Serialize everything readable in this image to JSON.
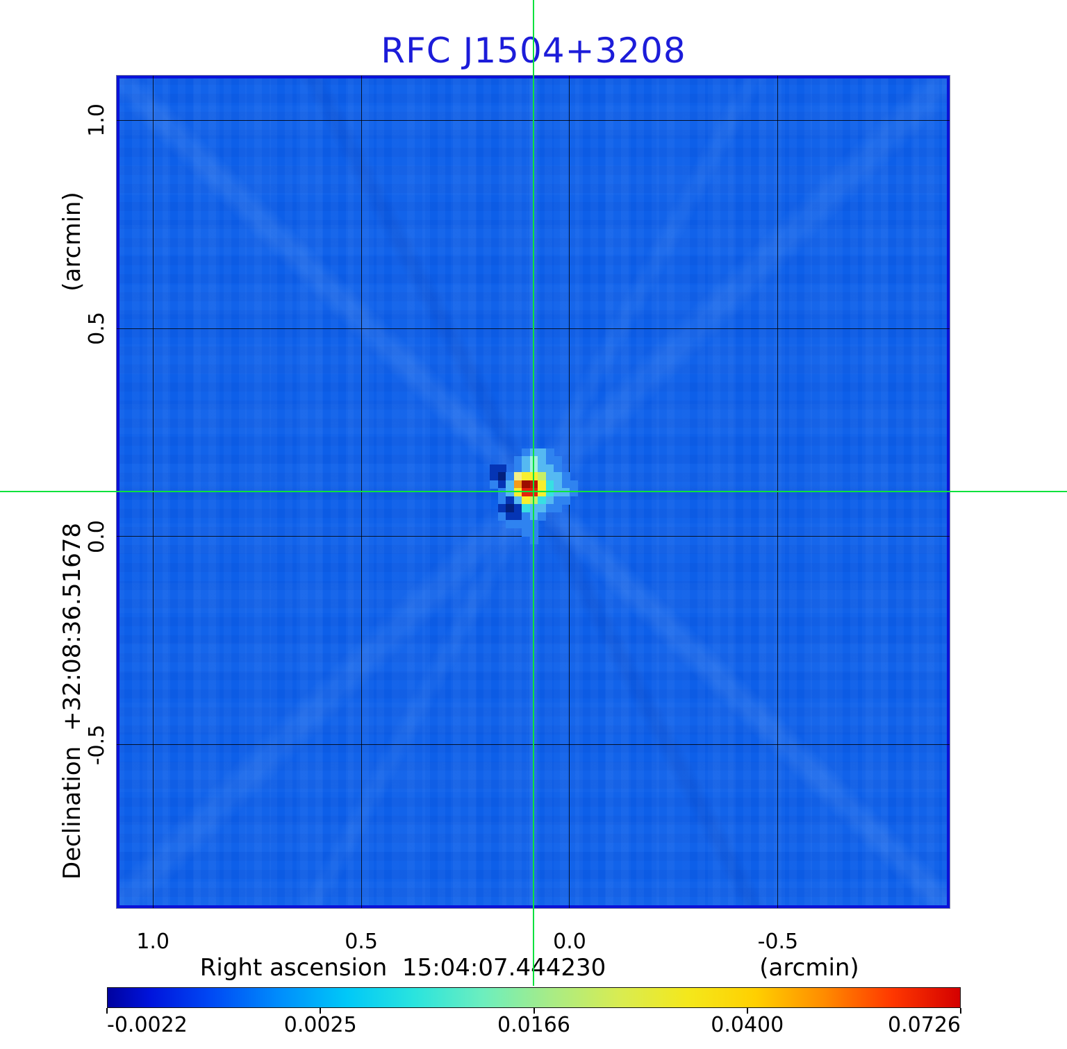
{
  "title": {
    "text": "RFC J1504+3208",
    "color": "#1c1cd9"
  },
  "y_axis": {
    "unit_label": "(arcmin)",
    "name_label": "Declination  +32:08:36.51678",
    "tick_labels": [
      "1.0",
      "0.5",
      "0.0",
      "-0.5"
    ]
  },
  "x_axis": {
    "unit_label": "(arcmin)",
    "name_label": "Right ascension  15:04:07.444230",
    "tick_labels": [
      "1.0",
      "0.5",
      "0.0",
      "-0.5"
    ]
  },
  "crosshair": {
    "color": "#0ce23c",
    "ra_arcmin": 0.087,
    "dec_arcmin": 0.108
  },
  "colorbar": {
    "labels": [
      "-0.0022",
      "0.0025",
      "0.0166",
      "0.0400",
      "0.0726"
    ],
    "fracs": [
      0,
      0.25,
      0.5,
      0.75,
      1
    ],
    "aligns": [
      "left",
      "center",
      "center",
      "center",
      "right"
    ]
  },
  "chart_data": {
    "type": "heatmap",
    "title": "RFC J1504+3208",
    "xlabel": "Right ascension  15:04:07.444230 (arcmin)",
    "ylabel": "Declination  +32:08:36.51678 (arcmin)",
    "x_range_arcmin": [
      1.087,
      -0.912
    ],
    "y_range_arcmin": [
      1.107,
      -0.892
    ],
    "x_ticks": [
      1.0,
      0.5,
      0.0,
      -0.5
    ],
    "y_ticks": [
      1.0,
      0.5,
      0.0,
      -0.5
    ],
    "grid": true,
    "value_min": -0.0022,
    "value_max": 0.0726,
    "colorbar_tick_values": [
      -0.0022,
      0.0025,
      0.0166,
      0.04,
      0.0726
    ],
    "colormap": "blue-cyan-yellow-red jet-like",
    "peak_position_arcmin": {
      "x": 0.087,
      "y": 0.108
    },
    "background_level_color": "#0d5fe9",
    "source_pixels": {
      "origin_x_arcmin": 0.2108,
      "origin_y_arcmin": 0.2125,
      "cell_arcmin": 0.01917,
      "palette": {
        "b": "#2f83f0",
        "c": "#55b9f2",
        "C": "#38dfe3",
        "p": "#a5f2dc",
        "g": "#c6ee67",
        "Y": "#f3ef86",
        "y": "#f7ef2e",
        "o": "#f59c1a",
        "r": "#e3230c",
        "E": "#c01505",
        "R": "#9c0d00",
        "n": "#0535b5",
        "N": "#03207d"
      },
      "rows": [
        ".....bccb....",
        "....bcpcbb...",
        ".nn.bcpccb...",
        ".nNbYyygccb..",
        ".bncoREyCcbb.",
        "..bcyrryCccb.",
        "..bncygCcbb..",
        "..nNnCccbb...",
        "..bnnbcb.....",
        "...bbbb......",
        ".....bb......",
        "......b......"
      ]
    }
  }
}
